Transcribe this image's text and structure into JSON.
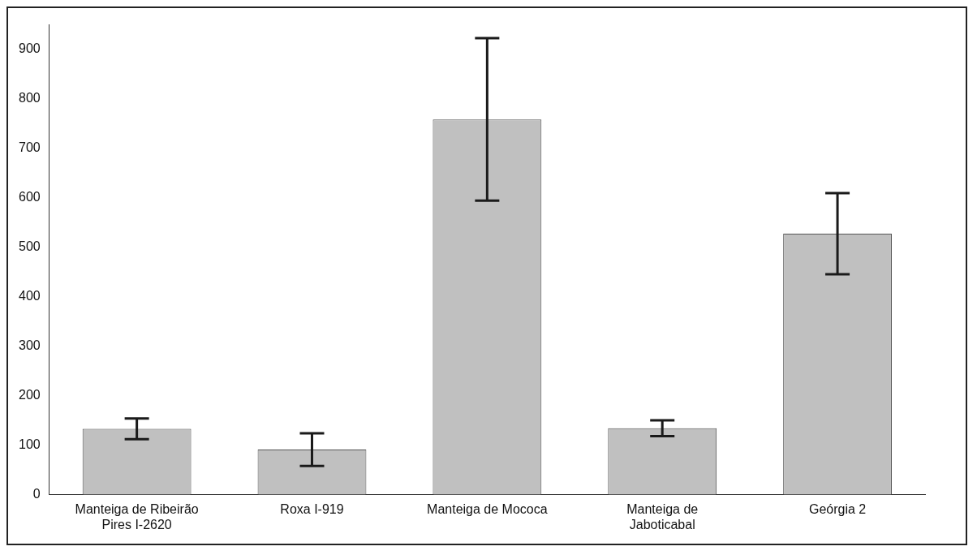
{
  "chart_data": {
    "type": "bar",
    "categories": [
      "Manteiga de Ribeirão Pires I-2620",
      "Roxa I-919",
      "Manteiga de Mococa",
      "Manteiga de Jaboticabal",
      "Geórgia 2"
    ],
    "values": [
      133,
      91,
      758,
      134,
      527
    ],
    "errors": [
      21,
      33,
      164,
      16,
      82
    ],
    "color": "#c0c0c0",
    "ylim": [
      0,
      950
    ],
    "yticks": [
      0,
      100,
      200,
      300,
      400,
      500,
      600,
      700,
      800,
      900
    ],
    "grid": false,
    "legend": false
  }
}
